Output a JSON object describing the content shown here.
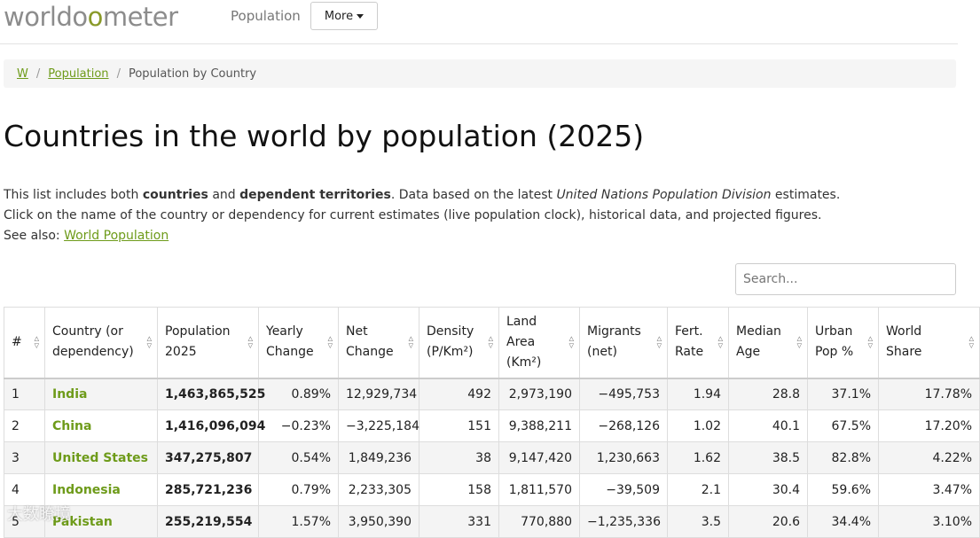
{
  "header": {
    "logo": {
      "pre": "worldo",
      "accent": "o",
      "post": "meter"
    },
    "nav_population": "Population",
    "nav_more": "More"
  },
  "breadcrumb": [
    "W",
    "Population",
    "Population by Country"
  ],
  "page_title": "Countries in the world by population (2025)",
  "intro": {
    "l1a": "This list includes both ",
    "l1b": "countries",
    "l1c": " and ",
    "l1d": "dependent territories",
    "l1e": ". Data based on the latest ",
    "l1f": "United Nations Population Division",
    "l1g": " estimates.",
    "l2": "Click on the name of the country or dependency for current estimates (live population clock), historical data, and projected figures.",
    "l3a": "See also: ",
    "l3b": "World Population"
  },
  "search": {
    "placeholder": "Search..."
  },
  "table": {
    "headers": [
      [
        "#"
      ],
      [
        "Country (or",
        "dependency)"
      ],
      [
        "Population",
        "2025"
      ],
      [
        "Yearly",
        "Change"
      ],
      [
        "Net",
        "Change"
      ],
      [
        "Density",
        "(P/Km²)"
      ],
      [
        "Land",
        "Area",
        "(Km²)"
      ],
      [
        "Migrants",
        "(net)"
      ],
      [
        "Fert.",
        "Rate"
      ],
      [
        "Median",
        "Age"
      ],
      [
        "Urban",
        "Pop %"
      ],
      [
        "World",
        "Share"
      ]
    ],
    "rows": [
      [
        "1",
        "India",
        "1,463,865,525",
        "0.89%",
        "12,929,734",
        "492",
        "2,973,190",
        "−495,753",
        "1.94",
        "28.8",
        "37.1%",
        "17.78%"
      ],
      [
        "2",
        "China",
        "1,416,096,094",
        "−0.23%",
        "−3,225,184",
        "151",
        "9,388,211",
        "−268,126",
        "1.02",
        "40.1",
        "67.5%",
        "17.20%"
      ],
      [
        "3",
        "United States",
        "347,275,807",
        "0.54%",
        "1,849,236",
        "38",
        "9,147,420",
        "1,230,663",
        "1.62",
        "38.5",
        "82.8%",
        "4.22%"
      ],
      [
        "4",
        "Indonesia",
        "285,721,236",
        "0.79%",
        "2,233,305",
        "158",
        "1,811,570",
        "−39,509",
        "2.1",
        "30.4",
        "59.6%",
        "3.47%"
      ],
      [
        "5",
        "Pakistan",
        "255,219,554",
        "1.57%",
        "3,950,390",
        "331",
        "770,880",
        "−1,235,336",
        "3.5",
        "20.6",
        "34.4%",
        "3.10%"
      ]
    ]
  },
  "watermark": "大数瞭境"
}
